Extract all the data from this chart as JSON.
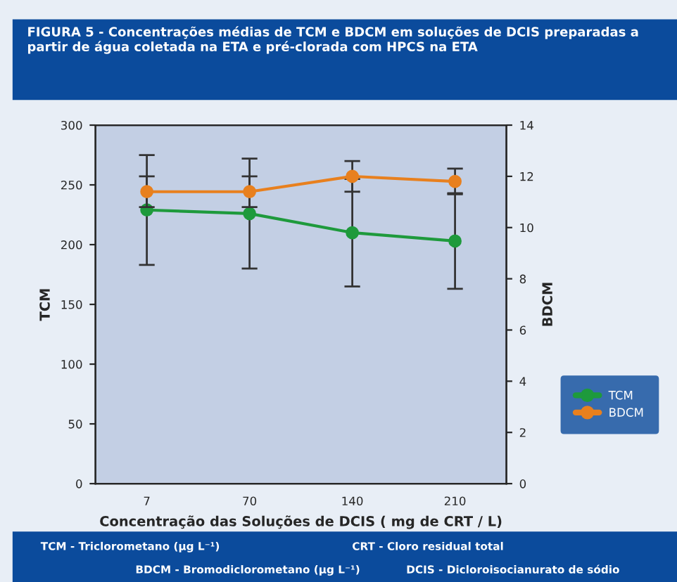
{
  "chart_data": {
    "type": "line",
    "title": "FIGURA 5 - Concentrações médias de TCM e BDCM em soluções de DCIS preparadas a partir de água coletada na ETA e pré-clorada com HPCS na ETA",
    "categories": [
      "7",
      "70",
      "140",
      "210"
    ],
    "xlabel": "Concentração das Soluções de DCIS ( mg de CRT / L)",
    "ylabel": "TCM",
    "y2label": "BDCM",
    "ylim": [
      0,
      300
    ],
    "yticks": [
      0,
      50,
      100,
      150,
      200,
      250,
      300
    ],
    "y2lim": [
      0,
      14
    ],
    "y2ticks": [
      0,
      2,
      4,
      6,
      8,
      10,
      12,
      14
    ],
    "series": [
      {
        "name": "TCM",
        "color": "#1e9a3c",
        "values": [
          229,
          226,
          210,
          203
        ],
        "errors": [
          46,
          46,
          45,
          40
        ]
      },
      {
        "name": "BDCM",
        "color": "#e8801e",
        "axis": "y2",
        "values": [
          11.4,
          11.4,
          12.0,
          11.8
        ],
        "errors": [
          0.6,
          0.6,
          0.6,
          0.5
        ]
      }
    ],
    "marker": "circle",
    "line_style": "solid",
    "grid": false,
    "legend": "right",
    "annotations": [
      "TCM - Triclorometano (µg L⁻¹)",
      "CRT - Cloro residual total",
      "BDCM - Bromodiclorometano (µg L⁻¹)",
      "DCIS - Dicloroisocianurato de sódio"
    ]
  }
}
